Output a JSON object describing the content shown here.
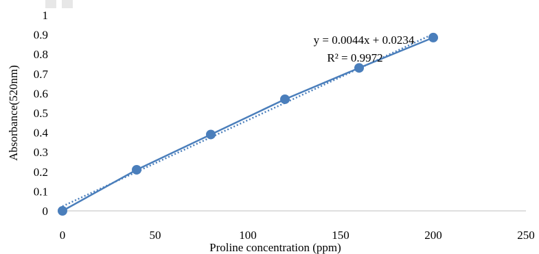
{
  "chart_data": {
    "type": "scatter",
    "title": "",
    "xlabel": "Proline  concentration (ppm)",
    "ylabel": "Absorbance(520nm)",
    "xlim": [
      0,
      250
    ],
    "ylim": [
      0,
      1
    ],
    "xticks": [
      "0",
      "50",
      "100",
      "150",
      "200",
      "250"
    ],
    "yticks": [
      "0",
      "0.1",
      "0.2",
      "0.3",
      "0.4",
      "0.5",
      "0.6",
      "0.7",
      "0.8",
      "0.9",
      "1"
    ],
    "series": [
      {
        "x": [
          0,
          40,
          80,
          120,
          160,
          200
        ],
        "y": [
          0,
          0.21,
          0.39,
          0.57,
          0.73,
          0.885
        ],
        "marker": "circle",
        "line": "solid",
        "color": "#4a7ebb"
      }
    ],
    "trendline": {
      "type": "linear",
      "slope": 0.0044,
      "intercept": 0.0234,
      "style": "dotted",
      "color": "#4a7ebb"
    },
    "annotations": {
      "equation": "y = 0.0044x + 0.0234",
      "r_squared": "R² = 0.9972"
    },
    "grid": false,
    "legend": "none"
  }
}
